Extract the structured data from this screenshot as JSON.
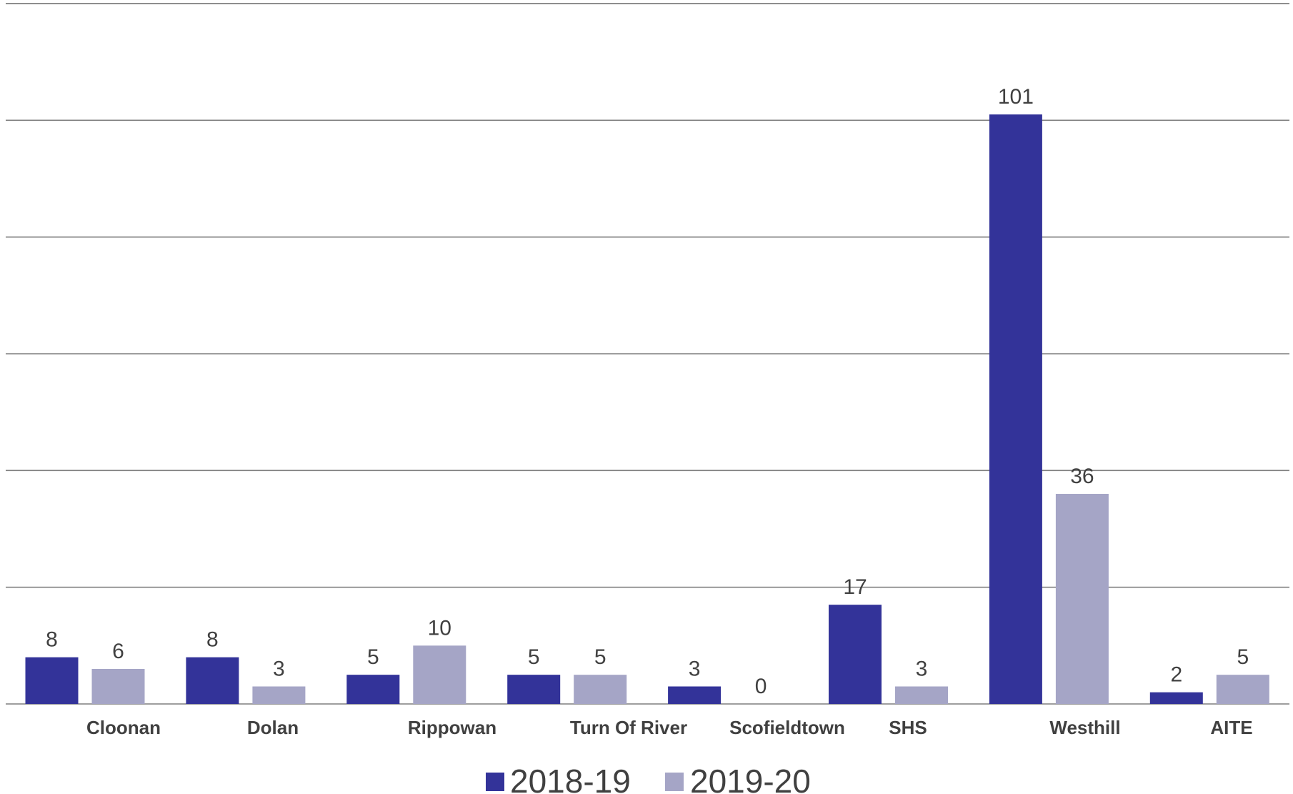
{
  "chart_data": {
    "type": "bar",
    "categories": [
      "Cloonan",
      "Dolan",
      "Rippowan",
      "Turn Of River",
      "Scofieldtown",
      "SHS",
      "Westhill",
      "AITE"
    ],
    "series": [
      {
        "name": "2018-19",
        "values": [
          8,
          8,
          5,
          5,
          3,
          17,
          101,
          2
        ],
        "color": "#333399"
      },
      {
        "name": "2019-20",
        "values": [
          6,
          3,
          10,
          5,
          0,
          3,
          36,
          5
        ],
        "color": "#a5a5c6"
      }
    ],
    "data_labels": [
      [
        "8",
        "8",
        "5",
        "5",
        "3",
        "17",
        "101",
        "2"
      ],
      [
        "6",
        "3",
        "10",
        "5",
        "0",
        "3",
        "36",
        "5"
      ]
    ],
    "ylim": [
      0,
      120
    ],
    "gridlines": [
      20,
      40,
      60,
      80,
      100,
      120
    ],
    "grid": true,
    "y_tick_labels_shown": false,
    "legend_position": "bottom-center",
    "gridline_color": "#7f7f7f",
    "text_color": "#404040"
  }
}
